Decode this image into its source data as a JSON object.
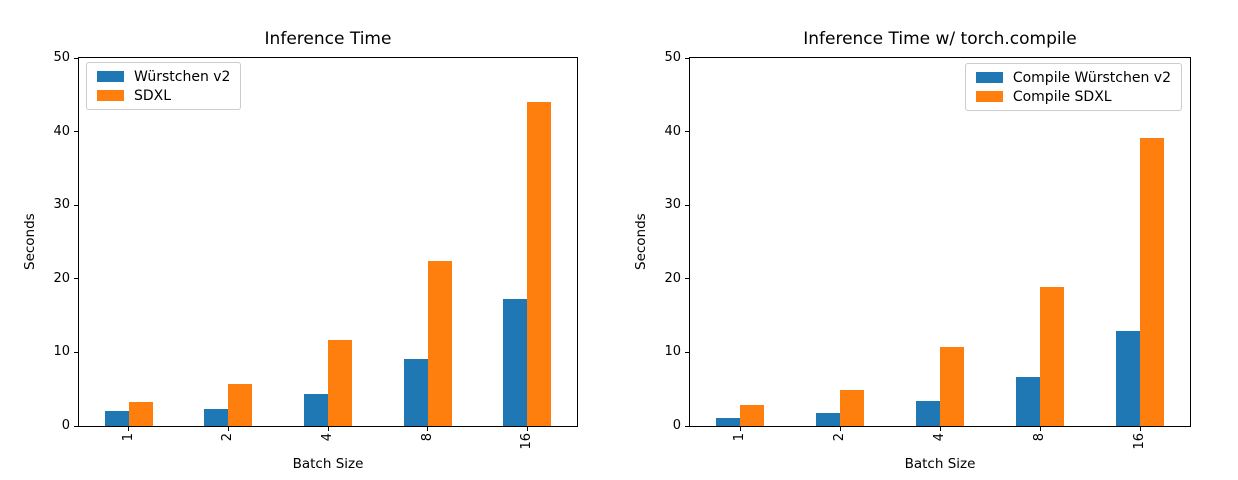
{
  "figure": {
    "background": "#ffffff",
    "text_color": "#000000",
    "accent_colors": {
      "blue": "#1f77b4",
      "orange": "#ff7f0e"
    }
  },
  "chart_data": [
    {
      "type": "bar",
      "title": "Inference Time",
      "xlabel": "Batch Size",
      "ylabel": "Seconds",
      "categories": [
        "1",
        "2",
        "4",
        "8",
        "16"
      ],
      "series": [
        {
          "name": "Würstchen v2",
          "color": "#1f77b4",
          "values": [
            2.0,
            2.3,
            4.4,
            9.1,
            17.3
          ]
        },
        {
          "name": "SDXL",
          "color": "#ff7f0e",
          "values": [
            3.3,
            5.7,
            11.7,
            22.4,
            44.0
          ]
        }
      ],
      "ylim": [
        0,
        50
      ],
      "yticks": [
        0,
        10,
        20,
        30,
        40,
        50
      ],
      "xtick_rotation": 90,
      "grid": false,
      "legend_position": "top-left"
    },
    {
      "type": "bar",
      "title": "Inference Time w/ torch.compile",
      "xlabel": "Batch Size",
      "ylabel": "Seconds",
      "categories": [
        "1",
        "2",
        "4",
        "8",
        "16"
      ],
      "series": [
        {
          "name": "Compile Würstchen v2",
          "color": "#1f77b4",
          "values": [
            1.1,
            1.8,
            3.4,
            6.7,
            12.9
          ]
        },
        {
          "name": "Compile SDXL",
          "color": "#ff7f0e",
          "values": [
            2.9,
            4.9,
            10.8,
            18.9,
            39.1
          ]
        }
      ],
      "ylim": [
        0,
        50
      ],
      "yticks": [
        0,
        10,
        20,
        30,
        40,
        50
      ],
      "xtick_rotation": 90,
      "grid": false,
      "legend_position": "top-right"
    }
  ]
}
